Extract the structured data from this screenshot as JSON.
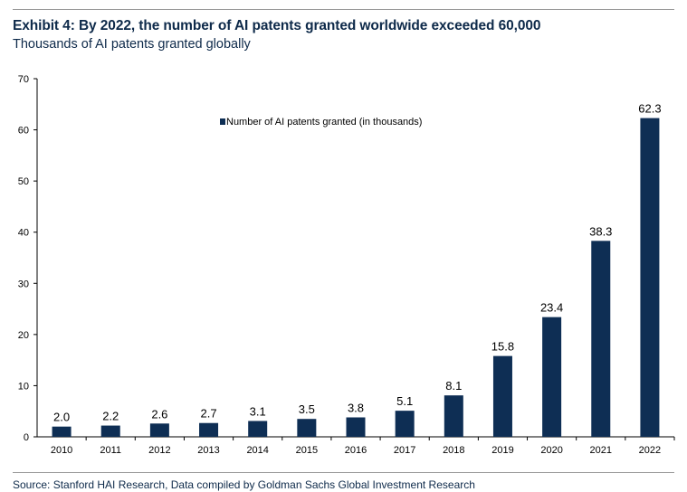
{
  "header": {
    "title": "Exhibit 4: By 2022, the number of AI patents granted worldwide exceeded 60,000",
    "subtitle": "Thousands of AI patents granted globally"
  },
  "footer": {
    "source": "Source: Stanford HAI Research, Data compiled by Goldman Sachs Global Investment Research"
  },
  "colors": {
    "bar": "#0e2e54",
    "axis": "#000000"
  },
  "chart_data": {
    "type": "bar",
    "categories": [
      "2010",
      "2011",
      "2012",
      "2013",
      "2014",
      "2015",
      "2016",
      "2017",
      "2018",
      "2019",
      "2020",
      "2021",
      "2022"
    ],
    "series": [
      {
        "name": "Number of AI patents granted (in thousands)",
        "values": [
          2.0,
          2.2,
          2.6,
          2.7,
          3.1,
          3.5,
          3.8,
          5.1,
          8.1,
          15.8,
          23.4,
          38.3,
          62.3
        ]
      }
    ],
    "data_labels": [
      "2.0",
      "2.2",
      "2.6",
      "2.7",
      "3.1",
      "3.5",
      "3.8",
      "5.1",
      "8.1",
      "15.8",
      "23.4",
      "38.3",
      "62.3"
    ],
    "ylim": [
      0,
      70
    ],
    "yticks": [
      0,
      10,
      20,
      30,
      40,
      50,
      60,
      70
    ],
    "grid": false,
    "legend": "top-center"
  }
}
